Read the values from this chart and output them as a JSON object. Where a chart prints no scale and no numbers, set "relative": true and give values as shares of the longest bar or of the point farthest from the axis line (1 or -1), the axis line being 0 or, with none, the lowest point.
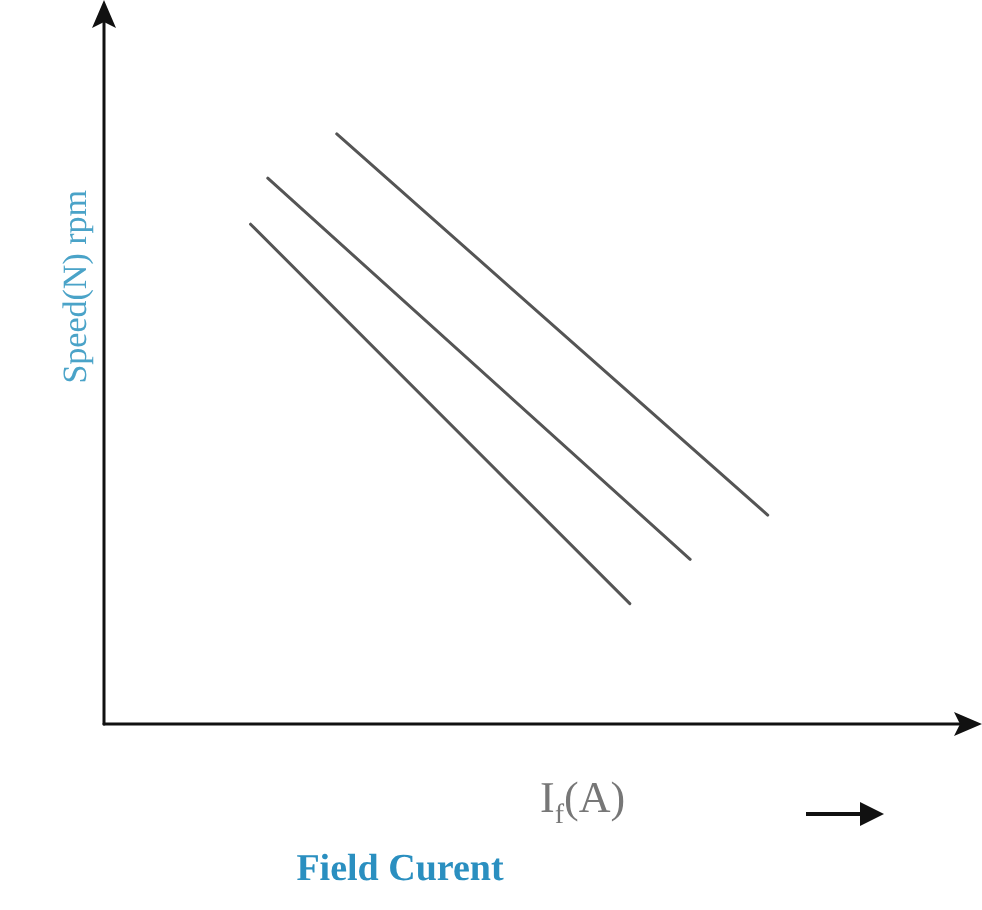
{
  "chart_data": {
    "type": "line",
    "relative": true,
    "ylabel": "Speed(N) rpm",
    "xlabel": "I$_{f}$(A)",
    "annotations": [
      "Field Curent"
    ],
    "marker": "none",
    "categories": [
      null,
      null,
      null,
      null,
      null,
      null,
      null,
      null,
      null,
      null,
      null,
      null,
      null,
      null,
      null,
      null,
      null,
      null,
      null,
      null,
      null,
      null,
      null,
      null,
      null,
      null,
      null,
      null,
      null,
      null,
      null,
      null,
      null,
      null,
      null,
      null,
      null,
      null,
      null,
      null,
      null,
      null,
      null,
      null,
      null,
      null,
      null,
      null,
      null,
      null,
      null,
      null,
      null,
      null,
      null,
      null,
      null,
      null,
      null,
      null,
      null,
      null,
      null,
      null,
      null,
      null,
      null,
      null,
      null,
      null,
      null,
      null,
      null,
      null,
      null,
      null,
      null,
      null,
      null,
      null,
      null,
      null,
      null,
      null,
      null,
      null,
      null,
      null,
      null,
      null,
      null,
      null,
      null,
      null,
      null,
      null,
      null,
      null,
      null,
      null,
      null
    ],
    "series": [
      {
        "color": "#555555",
        "values": [
          null,
          null,
          null,
          null,
          null,
          null,
          null,
          null,
          null,
          null,
          null,
          null,
          null,
          null,
          null,
          null,
          null,
          0.847,
          null,
          null,
          null,
          null,
          null,
          null,
          null,
          null,
          null,
          null,
          null,
          null,
          null,
          null,
          null,
          null,
          null,
          null,
          null,
          null,
          null,
          null,
          null,
          null,
          null,
          null,
          null,
          null,
          null,
          null,
          null,
          null,
          null,
          null,
          null,
          null,
          null,
          null,
          null,
          null,
          null,
          null,
          null,
          0.204,
          null,
          null,
          null,
          null,
          null,
          null,
          null,
          null,
          null,
          null,
          null,
          null,
          null,
          null,
          null,
          null,
          null,
          null,
          null,
          null,
          null,
          null,
          null,
          null,
          null,
          null,
          null,
          null,
          null,
          null,
          null,
          null,
          null,
          null,
          null,
          null,
          null,
          null,
          null
        ]
      },
      {
        "color": "#555555",
        "values": [
          null,
          null,
          null,
          null,
          null,
          null,
          null,
          null,
          null,
          null,
          null,
          null,
          null,
          null,
          null,
          null,
          null,
          null,
          null,
          0.925,
          null,
          null,
          null,
          null,
          null,
          null,
          null,
          null,
          null,
          null,
          null,
          null,
          null,
          null,
          null,
          null,
          null,
          null,
          null,
          null,
          null,
          null,
          null,
          null,
          null,
          null,
          null,
          null,
          null,
          null,
          null,
          null,
          null,
          null,
          null,
          null,
          null,
          null,
          null,
          null,
          null,
          null,
          null,
          null,
          null,
          null,
          null,
          null,
          0.279,
          null,
          null,
          null,
          null,
          null,
          null,
          null,
          null,
          null,
          null,
          null,
          null,
          null,
          null,
          null,
          null,
          null,
          null,
          null,
          null,
          null,
          null,
          null,
          null,
          null,
          null,
          null,
          null,
          null,
          null,
          null,
          null
        ]
      },
      {
        "color": "#555555",
        "values": [
          null,
          null,
          null,
          null,
          null,
          null,
          null,
          null,
          null,
          null,
          null,
          null,
          null,
          null,
          null,
          null,
          null,
          null,
          null,
          null,
          null,
          null,
          null,
          null,
          null,
          null,
          null,
          1,
          null,
          null,
          null,
          null,
          null,
          null,
          null,
          null,
          null,
          null,
          null,
          null,
          null,
          null,
          null,
          null,
          null,
          null,
          null,
          null,
          null,
          null,
          null,
          null,
          null,
          null,
          null,
          null,
          null,
          null,
          null,
          null,
          null,
          null,
          null,
          null,
          null,
          null,
          null,
          null,
          null,
          null,
          null,
          null,
          null,
          null,
          null,
          null,
          null,
          0.354,
          null,
          null,
          null,
          null,
          null,
          null,
          null,
          null,
          null,
          null,
          null,
          null,
          null,
          null,
          null,
          null,
          null,
          null,
          null,
          null,
          null,
          null,
          null
        ]
      }
    ]
  }
}
